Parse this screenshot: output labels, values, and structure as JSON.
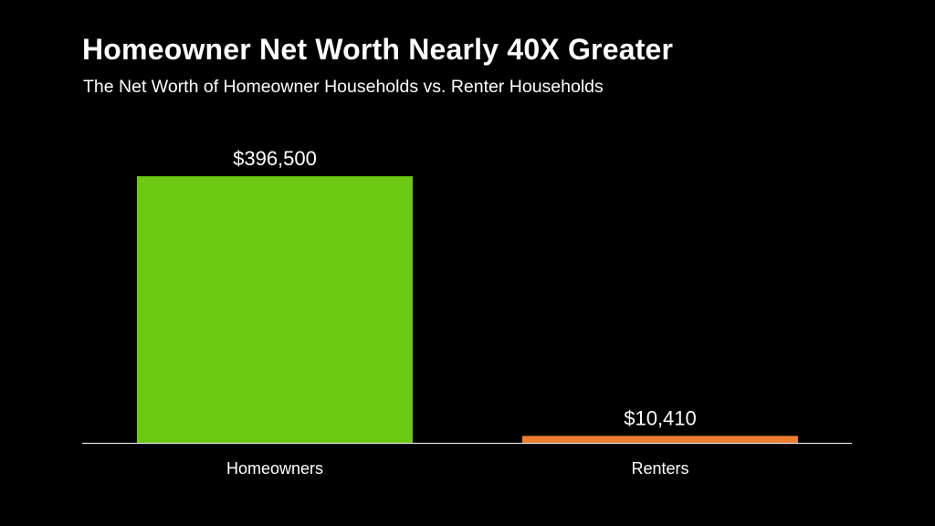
{
  "title": "Homeowner Net Worth Nearly 40X Greater",
  "subtitle": "The Net Worth of Homeowner Households vs. Renter Households",
  "chart_data": {
    "type": "bar",
    "categories": [
      "Homeowners",
      "Renters"
    ],
    "values": [
      396500,
      10410
    ],
    "value_labels": [
      "$396,500",
      "$10,410"
    ],
    "colors": [
      "#6cc812",
      "#ed7d31"
    ],
    "grid": false,
    "legend": "none",
    "ylim": [
      0,
      396500
    ]
  }
}
